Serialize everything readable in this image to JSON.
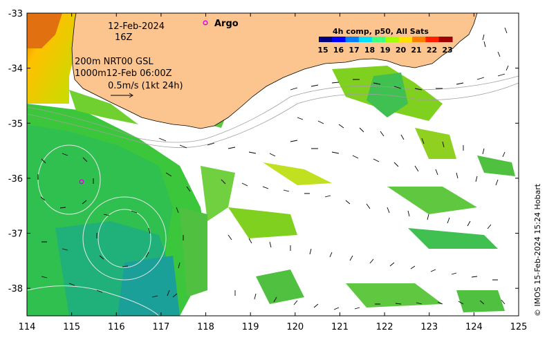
{
  "map": {
    "date": "12-Feb-2024",
    "hour": "16Z",
    "argo_label": "Argo",
    "legend_title": "4h comp, p50, All Sats",
    "colorbar_ticks": [
      "15",
      "16",
      "17",
      "18",
      "19",
      "20",
      "21",
      "22",
      "23"
    ],
    "colorbar_colors": [
      "#00007f",
      "#0000ff",
      "#0080ff",
      "#00e0ff",
      "#40ff80",
      "#a0ff00",
      "#ffe000",
      "#ff8000",
      "#ff2000",
      "#a00000"
    ],
    "contours_label": "200m  NRT00 GSL",
    "contours_label2": "1000m12-Feb 06:00Z",
    "scale_label": "0.5m/s (1kt 24h)",
    "credit": "© IMOS 15-Feb-2024 15:24 Hobart",
    "x_ticks": [
      "114",
      "115",
      "116",
      "117",
      "118",
      "119",
      "120",
      "121",
      "122",
      "123",
      "124",
      "125"
    ],
    "y_ticks": [
      "-33",
      "-34",
      "-35",
      "-36",
      "-37",
      "-38"
    ],
    "lon_range": [
      114,
      125
    ],
    "lat_range": [
      -38.5,
      -33
    ],
    "land_color": "#fcc590",
    "argo_color": "#e000e0"
  }
}
